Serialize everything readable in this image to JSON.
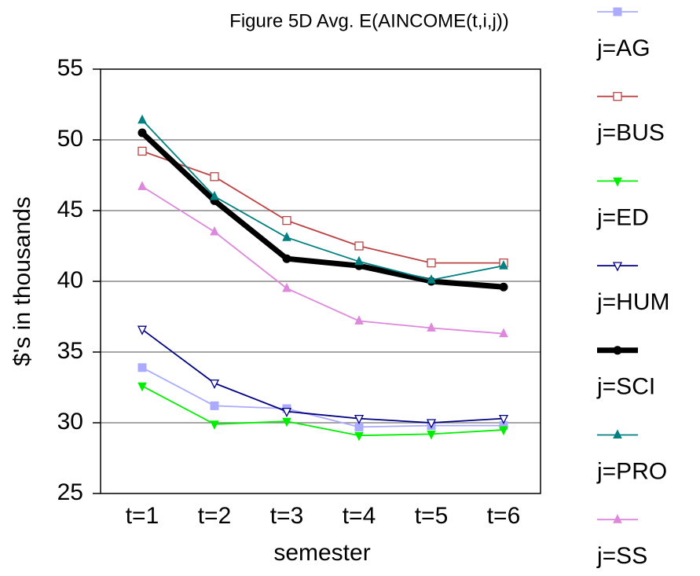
{
  "chart_data": {
    "type": "line",
    "title": "Figure 5D Avg. E(AINCOME(t,i,j))",
    "x_label": "semester",
    "y_label": "$'s in thousands",
    "categories": [
      "t=1",
      "t=2",
      "t=3",
      "t=4",
      "t=5",
      "t=6"
    ],
    "ylim": [
      25,
      55
    ],
    "yticks": [
      25,
      30,
      35,
      40,
      45,
      50,
      55
    ],
    "grid": true,
    "legend": "right",
    "series": [
      {
        "name": "j=AG",
        "color": "#aaaaff",
        "marker": "square",
        "values": [
          33.9,
          31.2,
          31.0,
          29.7,
          29.8,
          29.8
        ]
      },
      {
        "name": "j=BUS",
        "color": "#bb4444",
        "marker": "open-square",
        "values": [
          49.2,
          47.4,
          44.3,
          42.5,
          41.3,
          41.3
        ]
      },
      {
        "name": "j=ED",
        "color": "#00ee00",
        "marker": "down-triangle",
        "values": [
          32.6,
          29.9,
          30.1,
          29.1,
          29.2,
          29.5
        ]
      },
      {
        "name": "j=HUM",
        "color": "#000080",
        "marker": "open-down-triangle",
        "values": [
          36.6,
          32.8,
          30.8,
          30.3,
          30.0,
          30.3
        ]
      },
      {
        "name": "j=SCI",
        "color": "#000000",
        "marker": "circle",
        "width": 7,
        "values": [
          50.5,
          45.7,
          41.6,
          41.1,
          40.0,
          39.6
        ]
      },
      {
        "name": "j=PRO",
        "color": "#008080",
        "marker": "up-triangle",
        "values": [
          51.4,
          46.0,
          43.1,
          41.4,
          40.1,
          41.1
        ]
      },
      {
        "name": "j=SS",
        "color": "#dd88dd",
        "marker": "up-triangle",
        "values": [
          46.7,
          43.5,
          39.5,
          37.2,
          36.7,
          36.3
        ]
      }
    ]
  }
}
